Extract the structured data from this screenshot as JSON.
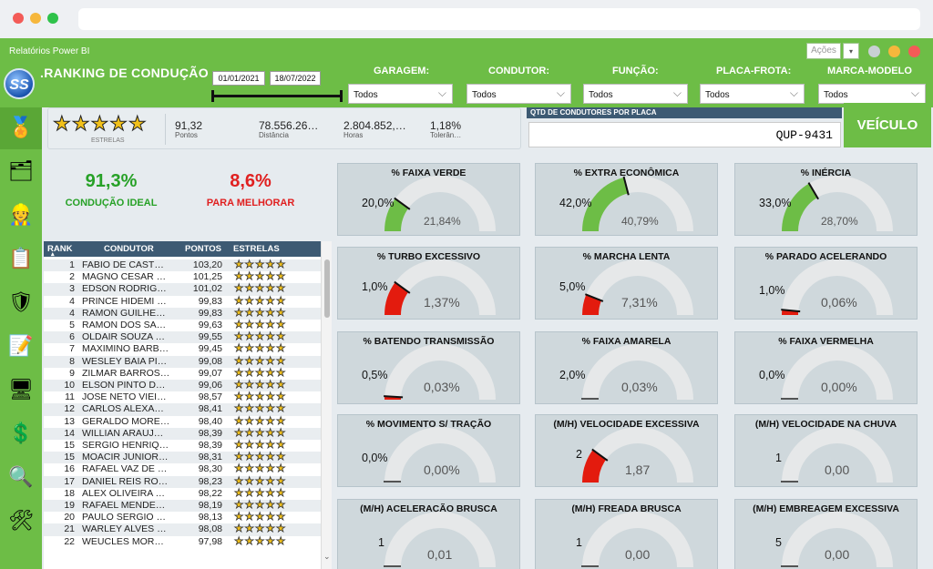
{
  "window": {
    "title": "Relatórios Power BI",
    "acoes_label": "Ações"
  },
  "header": {
    "title": ".RANKING DE CONDUÇÃO",
    "date_start": "01/01/2021",
    "date_end": "18/07/2022"
  },
  "filters": [
    {
      "label": "GARAGEM:",
      "value": "Todos"
    },
    {
      "label": "CONDUTOR:",
      "value": "Todos"
    },
    {
      "label": "FUNÇÃO:",
      "value": "Todos"
    },
    {
      "label": "PLACA-FROTA:",
      "value": "Todos"
    },
    {
      "label": "MARCA-MODELO",
      "value": "Todos"
    }
  ],
  "stars_card": {
    "stars": 5,
    "caption": "ESTRELAS",
    "stats": [
      {
        "value": "91,32",
        "caption": "Pontos"
      },
      {
        "value": "78.556.26…",
        "caption": "Distância"
      },
      {
        "value": "2.804.852,…",
        "caption": "Horas"
      },
      {
        "value": "1,18%",
        "caption": "Tolerân…"
      }
    ]
  },
  "qtd_card": {
    "header": "QTD DE CONDUTORES POR PLACA",
    "plate": "QUP-9431",
    "veiculo_button": "VEÍCULO"
  },
  "kpis": {
    "ideal": {
      "value": "91,3%",
      "label": "CONDUÇÃO IDEAL",
      "color": "#27a127"
    },
    "melhorar": {
      "value": "8,6%",
      "label": "PARA MELHORAR",
      "color": "#e02020"
    }
  },
  "ranking": {
    "columns": [
      "RANK",
      "CONDUTOR",
      "PONTOS",
      "ESTRELAS"
    ],
    "rows": [
      {
        "rank": "1",
        "name": "FABIO DE CAST…",
        "points": "103,20",
        "stars": 5
      },
      {
        "rank": "2",
        "name": "MAGNO CESAR …",
        "points": "101,25",
        "stars": 5
      },
      {
        "rank": "3",
        "name": "EDSON RODRIG…",
        "points": "101,02",
        "stars": 5
      },
      {
        "rank": "4",
        "name": "PRINCE HIDEMI …",
        "points": "99,83",
        "stars": 5
      },
      {
        "rank": "4",
        "name": "RAMON GUILHE…",
        "points": "99,83",
        "stars": 5
      },
      {
        "rank": "5",
        "name": "RAMON DOS SA…",
        "points": "99,63",
        "stars": 5
      },
      {
        "rank": "6",
        "name": "OLDAIR SOUZA …",
        "points": "99,55",
        "stars": 5
      },
      {
        "rank": "7",
        "name": "MAXIMINO BARB…",
        "points": "99,45",
        "stars": 5
      },
      {
        "rank": "8",
        "name": "WESLEY BAIA PI…",
        "points": "99,08",
        "stars": 5
      },
      {
        "rank": "9",
        "name": "ZILMAR BARROS…",
        "points": "99,07",
        "stars": 5
      },
      {
        "rank": "10",
        "name": "ELSON PINTO D…",
        "points": "99,06",
        "stars": 5
      },
      {
        "rank": "11",
        "name": "JOSE NETO VIEI…",
        "points": "98,57",
        "stars": 5
      },
      {
        "rank": "12",
        "name": "CARLOS ALEXA…",
        "points": "98,41",
        "stars": 5
      },
      {
        "rank": "13",
        "name": "GERALDO MORE…",
        "points": "98,40",
        "stars": 5
      },
      {
        "rank": "14",
        "name": "WILLIAN ARAUJ…",
        "points": "98,39",
        "stars": 5
      },
      {
        "rank": "15",
        "name": "SERGIO HENRIQ…",
        "points": "98,39",
        "stars": 5
      },
      {
        "rank": "15",
        "name": "MOACIR JUNIOR…",
        "points": "98,31",
        "stars": 5
      },
      {
        "rank": "16",
        "name": "RAFAEL VAZ DE …",
        "points": "98,30",
        "stars": 5
      },
      {
        "rank": "17",
        "name": "DANIEL REIS RO…",
        "points": "98,23",
        "stars": 5
      },
      {
        "rank": "18",
        "name": "ALEX OLIVEIRA …",
        "points": "98,22",
        "stars": 5
      },
      {
        "rank": "19",
        "name": "RAFAEL MENDE…",
        "points": "98,19",
        "stars": 5
      },
      {
        "rank": "20",
        "name": "PAULO SERGIO …",
        "points": "98,13",
        "stars": 5
      },
      {
        "rank": "21",
        "name": "WARLEY ALVES …",
        "points": "98,08",
        "stars": 5
      },
      {
        "rank": "22",
        "name": "WEUCLES MOR…",
        "points": "97,98",
        "stars": 5
      }
    ]
  },
  "gauges": [
    {
      "title": "% FAIXA VERDE",
      "value_label": "20,0%",
      "ref_label": "21,84%",
      "fill": 0.2,
      "color": "#6dbd46"
    },
    {
      "title": "% EXTRA ECONÔMICA",
      "value_label": "42,0%",
      "ref_label": "40,79%",
      "fill": 0.42,
      "color": "#6dbd46"
    },
    {
      "title": "% INÉRCIA",
      "value_label": "33,0%",
      "ref_label": "28,70%",
      "fill": 0.33,
      "color": "#6dbd46"
    },
    {
      "title": "% TURBO EXCESSIVO",
      "value_label": "1,0%",
      "ref_label": "1,37%",
      "fill": 0.2,
      "color": "#e31b0e"
    },
    {
      "title": "% MARCHA LENTA",
      "value_label": "5,0%",
      "ref_label": "7,31%",
      "fill": 0.12,
      "color": "#e31b0e"
    },
    {
      "title": "% PARADO ACELERANDO",
      "value_label": "1,0%",
      "ref_label": "0,06%",
      "fill": 0.03,
      "color": "#e31b0e"
    },
    {
      "title": "% BATENDO TRANSMISSÃO",
      "value_label": "0,5%",
      "ref_label": "0,03%",
      "fill": 0.02,
      "color": "#e31b0e"
    },
    {
      "title": "% FAIXA AMARELA",
      "value_label": "2,0%",
      "ref_label": "0,03%",
      "fill": 0.0,
      "color": "#e31b0e"
    },
    {
      "title": "% FAIXA VERMELHA",
      "value_label": "0,0%",
      "ref_label": "0,00%",
      "fill": 0.0,
      "color": "#e31b0e"
    },
    {
      "title": "% MOVIMENTO S/ TRAÇÃO",
      "value_label": "0,0%",
      "ref_label": "0,00%",
      "fill": 0.0,
      "color": "#e31b0e"
    },
    {
      "title": "(M/H) VELOCIDADE EXCESSIVA",
      "value_label": "2",
      "ref_label": "1,87",
      "fill": 0.2,
      "color": "#e31b0e"
    },
    {
      "title": "(M/H) VELOCIDADE NA CHUVA",
      "value_label": "1",
      "ref_label": "0,00",
      "fill": 0.0,
      "color": "#e31b0e"
    },
    {
      "title": "(M/H) ACELERAÇÃO BRUSCA",
      "value_label": "1",
      "ref_label": "0,01",
      "fill": 0.0,
      "color": "#e31b0e"
    },
    {
      "title": "(M/H) FREADA BRUSCA",
      "value_label": "1",
      "ref_label": "0,00",
      "fill": 0.0,
      "color": "#e31b0e"
    },
    {
      "title": "(M/H) EMBREAGEM EXCESSIVA",
      "value_label": "5",
      "ref_label": "0,00",
      "fill": 0.0,
      "color": "#e31b0e"
    }
  ],
  "sidebar": [
    {
      "icon": "medal-icon"
    },
    {
      "icon": "hierarchy-icon"
    },
    {
      "icon": "driver-icon"
    },
    {
      "icon": "document-icon"
    },
    {
      "icon": "shield-check-icon"
    },
    {
      "icon": "report-pencil-icon"
    },
    {
      "icon": "monitor-presenter-icon"
    },
    {
      "icon": "money-coin-icon"
    },
    {
      "icon": "magnifier-icon"
    },
    {
      "icon": "tools-icon"
    }
  ]
}
